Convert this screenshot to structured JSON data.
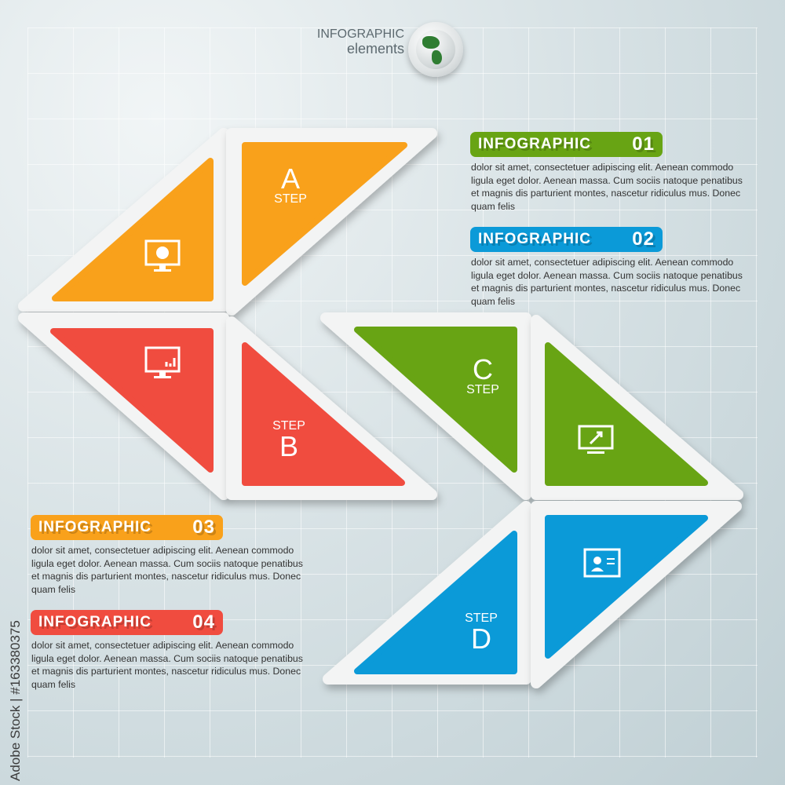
{
  "header": {
    "line1": "INFOGRAPHIC",
    "line2": "elements",
    "icon": "globe-icon"
  },
  "colors": {
    "orange": "#f9a11b",
    "red": "#f04c3f",
    "green": "#68a414",
    "blue": "#0b9ad8"
  },
  "steps": [
    {
      "letter": "A",
      "label": "STEP",
      "icon": "monitor-pie-chart-icon"
    },
    {
      "letter": "B",
      "label": "STEP",
      "icon": "monitor-bar-chart-icon"
    },
    {
      "letter": "C",
      "label": "STEP",
      "icon": "monitor-pointer-icon"
    },
    {
      "letter": "D",
      "label": "STEP",
      "icon": "presentation-person-icon"
    }
  ],
  "blocks": [
    {
      "title": "INFOGRAPHIC",
      "number": "01",
      "lines": [
        "dolor sit amet, consectetuer adipiscing elit. Aenean commodo",
        "ligula eget dolor. Aenean massa. Cum sociis natoque penatibus",
        "et magnis dis parturient montes, nascetur ridiculus mus. Donec",
        "quam felis"
      ]
    },
    {
      "title": "INFOGRAPHIC",
      "number": "02",
      "lines": [
        "dolor sit amet, consectetuer adipiscing elit. Aenean commodo",
        "ligula eget dolor. Aenean massa. Cum sociis natoque penatibus",
        "et magnis dis parturient montes, nascetur ridiculus mus. Donec",
        "quam felis"
      ]
    },
    {
      "title": "INFOGRAPHIC",
      "number": "03",
      "lines": [
        "dolor sit amet, consectetuer adipiscing elit. Aenean commodo",
        "ligula eget dolor. Aenean massa. Cum sociis natoque penatibus",
        "et magnis dis parturient montes, nascetur ridiculus mus. Donec",
        "quam felis"
      ]
    },
    {
      "title": "INFOGRAPHIC",
      "number": "04",
      "lines": [
        "dolor sit amet, consectetuer adipiscing elit. Aenean commodo",
        "ligula eget dolor. Aenean massa. Cum sociis natoque penatibus",
        "et magnis dis parturient montes, nascetur ridiculus mus. Donec",
        "quam felis"
      ]
    }
  ],
  "credit": "Adobe Stock | #163380375"
}
